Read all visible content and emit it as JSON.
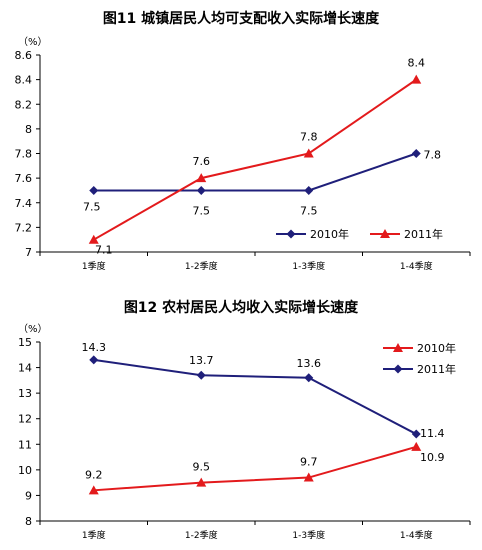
{
  "chart_data": [
    {
      "type": "line",
      "title": "图11  城镇居民人均可支配收入实际增长速度",
      "unit": "（%）",
      "categories": [
        "1季度",
        "1-2季度",
        "1-3季度",
        "1-4季度"
      ],
      "ylim": [
        7,
        8.6
      ],
      "yticks": [
        "7",
        "7.2",
        "7.4",
        "7.6",
        "7.8",
        "8",
        "8.2",
        "8.4",
        "8.6"
      ],
      "series": [
        {
          "name": "2010年",
          "values": [
            7.5,
            7.5,
            7.5,
            7.8
          ],
          "labels": [
            "7.5",
            "7.5",
            "7.5",
            "7.8"
          ],
          "color": "#1f1f7a",
          "marker": "diamond"
        },
        {
          "name": "2011年",
          "values": [
            7.1,
            7.6,
            7.8,
            8.4
          ],
          "labels": [
            "7.1",
            "7.6",
            "7.8",
            "8.4"
          ],
          "color": "#e31a1c",
          "marker": "triangle"
        }
      ],
      "legend_position": "bottom-right",
      "grid": false
    },
    {
      "type": "line",
      "title": "图12  农村居民人均收入实际增长速度",
      "unit": "（%）",
      "categories": [
        "1季度",
        "1-2季度",
        "1-3季度",
        "1-4季度"
      ],
      "ylim": [
        8,
        15
      ],
      "yticks": [
        "8",
        "9",
        "10",
        "11",
        "12",
        "13",
        "14",
        "15"
      ],
      "series": [
        {
          "name": "2010年",
          "values": [
            9.2,
            9.5,
            9.7,
            10.9
          ],
          "labels": [
            "9.2",
            "9.5",
            "9.7",
            "10.9"
          ],
          "color": "#e31a1c",
          "marker": "triangle"
        },
        {
          "name": "2011年",
          "values": [
            14.3,
            13.7,
            13.6,
            11.4
          ],
          "labels": [
            "14.3",
            "13.7",
            "13.6",
            "11.4"
          ],
          "color": "#1f1f7a",
          "marker": "diamond"
        }
      ],
      "legend_position": "top-right",
      "grid": false
    }
  ]
}
